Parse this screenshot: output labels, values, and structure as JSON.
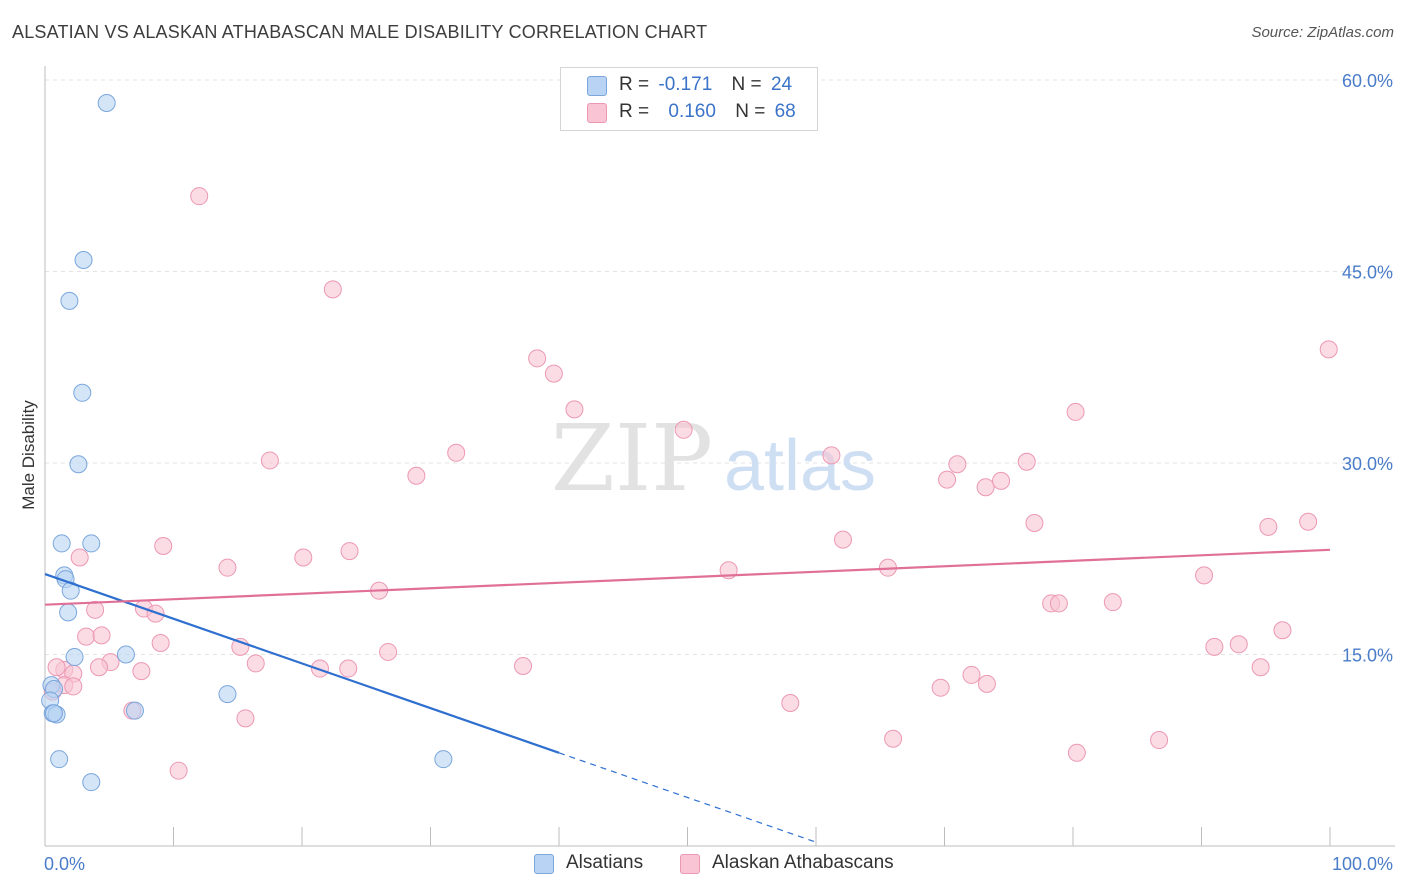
{
  "title": "ALSATIAN VS ALASKAN ATHABASCAN MALE DISABILITY CORRELATION CHART",
  "source": "Source: ZipAtlas.com",
  "watermark": {
    "zip": "ZIP",
    "atlas": "atlas"
  },
  "legend": {
    "rows": [
      {
        "r_label": "R =",
        "r_value": "-0.171",
        "n_label": "N =",
        "n_value": "24"
      },
      {
        "r_label": "R =",
        "r_value": "0.160",
        "n_label": "N =",
        "n_value": "68"
      }
    ]
  },
  "colors": {
    "alsatians_fill": "#b8d3f3",
    "alsatians_stroke": "#7aa6dc",
    "alsatians_line": "#2f6fd0",
    "athabascans_fill": "#f9c4d4",
    "athabascans_stroke": "#ec98b3",
    "athabascans_line": "#e07098",
    "tick_label": "#4a7cc9",
    "grid": "#e3e3e3"
  },
  "chart_data": {
    "type": "scatter",
    "title": "ALSATIAN VS ALASKAN ATHABASCAN MALE DISABILITY CORRELATION CHART",
    "xlabel": "",
    "ylabel": "Male Disability",
    "xlim": [
      0,
      100
    ],
    "ylim": [
      0,
      60
    ],
    "x_tick_labels": [
      "0.0%",
      "100.0%"
    ],
    "y_ticks": [
      15,
      30,
      45,
      60
    ],
    "y_tick_labels": [
      "15.0%",
      "30.0%",
      "45.0%",
      "60.0%"
    ],
    "grid": true,
    "legend_position": "top-center",
    "series": [
      {
        "name": "Alsatians",
        "points": [
          [
            4.8,
            58.2
          ],
          [
            3.0,
            45.9
          ],
          [
            1.9,
            42.7
          ],
          [
            2.9,
            35.5
          ],
          [
            2.6,
            29.9
          ],
          [
            1.3,
            23.7
          ],
          [
            3.6,
            23.7
          ],
          [
            1.5,
            21.2
          ],
          [
            1.6,
            20.9
          ],
          [
            2.0,
            20.0
          ],
          [
            1.8,
            18.3
          ],
          [
            2.3,
            14.8
          ],
          [
            6.3,
            15.0
          ],
          [
            0.5,
            12.6
          ],
          [
            0.7,
            12.3
          ],
          [
            0.4,
            11.4
          ],
          [
            0.6,
            10.4
          ],
          [
            0.9,
            10.3
          ],
          [
            0.7,
            10.4
          ],
          [
            14.2,
            11.9
          ],
          [
            7.0,
            10.6
          ],
          [
            1.1,
            6.8
          ],
          [
            3.6,
            5.0
          ],
          [
            31.0,
            6.8
          ]
        ],
        "trend": {
          "x": [
            0,
            40
          ],
          "y": [
            21.3,
            7.3
          ],
          "dashed_to": [
            60,
            0.3
          ]
        }
      },
      {
        "name": "Alaskan Athabascans",
        "points": [
          [
            12.0,
            50.9
          ],
          [
            22.4,
            43.6
          ],
          [
            38.3,
            38.2
          ],
          [
            39.6,
            37.0
          ],
          [
            41.2,
            34.2
          ],
          [
            99.9,
            38.9
          ],
          [
            80.2,
            34.0
          ],
          [
            49.7,
            32.6
          ],
          [
            32.0,
            30.8
          ],
          [
            17.5,
            30.2
          ],
          [
            28.9,
            29.0
          ],
          [
            61.2,
            30.6
          ],
          [
            71.0,
            29.9
          ],
          [
            76.4,
            30.1
          ],
          [
            70.2,
            28.7
          ],
          [
            73.2,
            28.1
          ],
          [
            74.4,
            28.6
          ],
          [
            77.0,
            25.3
          ],
          [
            95.2,
            25.0
          ],
          [
            98.3,
            25.4
          ],
          [
            9.2,
            23.5
          ],
          [
            23.7,
            23.1
          ],
          [
            20.1,
            22.6
          ],
          [
            62.1,
            24.0
          ],
          [
            2.7,
            22.6
          ],
          [
            14.2,
            21.8
          ],
          [
            53.2,
            21.6
          ],
          [
            65.6,
            21.8
          ],
          [
            90.2,
            21.2
          ],
          [
            26.0,
            20.0
          ],
          [
            3.9,
            18.5
          ],
          [
            7.7,
            18.6
          ],
          [
            8.6,
            18.2
          ],
          [
            83.1,
            19.1
          ],
          [
            78.3,
            19.0
          ],
          [
            78.9,
            19.0
          ],
          [
            3.2,
            16.4
          ],
          [
            4.4,
            16.5
          ],
          [
            9.0,
            15.9
          ],
          [
            15.2,
            15.6
          ],
          [
            26.7,
            15.2
          ],
          [
            92.9,
            15.8
          ],
          [
            91.0,
            15.6
          ],
          [
            5.1,
            14.4
          ],
          [
            16.4,
            14.3
          ],
          [
            21.4,
            13.9
          ],
          [
            23.6,
            13.9
          ],
          [
            37.2,
            14.1
          ],
          [
            1.5,
            13.8
          ],
          [
            4.2,
            14.0
          ],
          [
            7.5,
            13.7
          ],
          [
            94.6,
            14.0
          ],
          [
            96.3,
            16.9
          ],
          [
            2.2,
            13.5
          ],
          [
            6.8,
            10.6
          ],
          [
            1.5,
            12.6
          ],
          [
            2.2,
            12.5
          ],
          [
            15.6,
            10.0
          ],
          [
            73.3,
            12.7
          ],
          [
            72.1,
            13.4
          ],
          [
            69.7,
            12.4
          ],
          [
            58.0,
            11.2
          ],
          [
            66.0,
            8.4
          ],
          [
            80.3,
            7.3
          ],
          [
            86.7,
            8.3
          ],
          [
            10.4,
            5.9
          ],
          [
            0.6,
            12.1
          ],
          [
            0.9,
            14.0
          ]
        ],
        "trend": {
          "x": [
            0,
            100
          ],
          "y": [
            18.9,
            23.2
          ]
        }
      }
    ]
  },
  "bottom_legend": [
    "Alsatians",
    "Alaskan Athabascans"
  ]
}
